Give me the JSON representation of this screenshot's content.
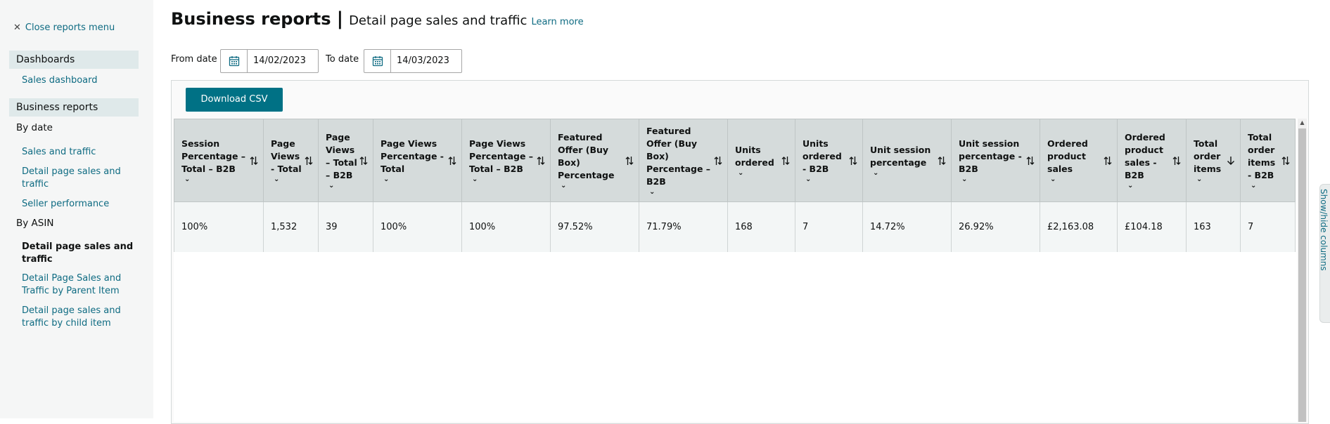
{
  "sidebar": {
    "close_label": "Close reports menu",
    "dashboards_heading": "Dashboards",
    "sales_dashboard": "Sales dashboard",
    "business_reports_heading": "Business reports",
    "by_date_label": "By date",
    "by_date_items": [
      "Sales and traffic",
      "Detail page sales and traffic",
      "Seller performance"
    ],
    "by_asin_label": "By ASIN",
    "by_asin_items": [
      "Detail page sales and traffic",
      "Detail Page Sales and Traffic by Parent Item",
      "Detail page sales and traffic by child item"
    ]
  },
  "header": {
    "title": "Business reports",
    "separator": "|",
    "subtitle": "Detail page sales and traffic",
    "learn_more": "Learn more"
  },
  "filters": {
    "from_label": "From date",
    "from_value": "14/02/2023",
    "to_label": "To date",
    "to_value": "14/03/2023"
  },
  "toolbar": {
    "download_label": "Download CSV"
  },
  "table": {
    "columns": [
      {
        "label": "Session Percentage – Total – B2B",
        "sort": "both"
      },
      {
        "label": "Page Views - Total",
        "sort": "both"
      },
      {
        "label": "Page Views – Total – B2B",
        "sort": "both"
      },
      {
        "label": "Page Views Percentage - Total",
        "sort": "both"
      },
      {
        "label": "Page Views Percentage – Total – B2B",
        "sort": "both"
      },
      {
        "label": "Featured Offer (Buy Box) Percentage",
        "sort": "both"
      },
      {
        "label": "Featured Offer (Buy Box) Percentage – B2B",
        "sort": "both"
      },
      {
        "label": "Units ordered",
        "sort": "both"
      },
      {
        "label": "Units ordered - B2B",
        "sort": "both"
      },
      {
        "label": "Unit session percentage",
        "sort": "both"
      },
      {
        "label": "Unit session percentage - B2B",
        "sort": "both"
      },
      {
        "label": "Ordered product sales",
        "sort": "both"
      },
      {
        "label": "Ordered product sales - B2B",
        "sort": "both"
      },
      {
        "label": "Total order items",
        "sort": "desc"
      },
      {
        "label": "Total order items - B2B",
        "sort": "both"
      }
    ],
    "rows": [
      [
        "100%",
        "1,532",
        "39",
        "100%",
        "100%",
        "97.52%",
        "71.79%",
        "168",
        "7",
        "14.72%",
        "26.92%",
        "£2,163.08",
        "£104.18",
        "163",
        "7"
      ]
    ]
  },
  "show_hide_label": "Show/hide columns",
  "colors": {
    "accent": "#007185",
    "link": "#0e6b82",
    "header_bg": "#d5dbdb",
    "sidebar_bg": "#f5f6f6"
  },
  "icons": {
    "close": "close-icon",
    "calendar": "calendar-icon",
    "sort": "sort-icon",
    "sort_desc": "sort-descending-icon",
    "chevron": "chevron-down-icon"
  }
}
